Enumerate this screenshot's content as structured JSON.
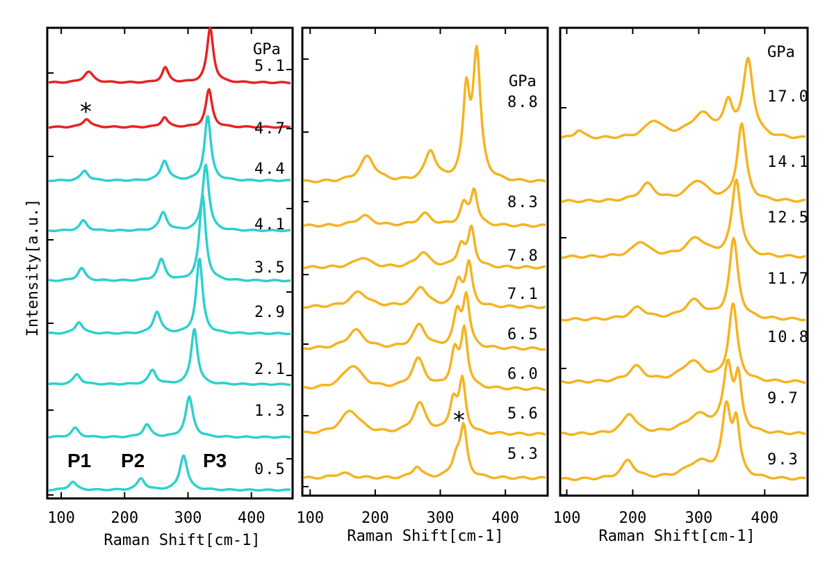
{
  "chart_data": [
    {
      "type": "line",
      "xlabel": "Raman Shift[cm-1]",
      "ylabel": "Intensity[a.u.]",
      "xlim": [
        78,
        465
      ],
      "x_ticks": [
        "100",
        "200",
        "300",
        "400"
      ],
      "unit_label": "GPa",
      "peak_labels": [
        "P1",
        "P2",
        "P3"
      ],
      "asterisk": "*",
      "colors": {
        "low_pressure": "#2ecfcf",
        "high_pressure": "#e82222"
      },
      "series": [
        {
          "name": "0.5",
          "color": "#2ecfcf",
          "peaks": [
            [
              118,
              10,
              7
            ],
            [
              226,
              14,
              7
            ],
            [
              293,
              42,
              7
            ]
          ]
        },
        {
          "name": "1.3",
          "color": "#2ecfcf",
          "peaks": [
            [
              122,
              11,
              7
            ],
            [
              235,
              15,
              7
            ],
            [
              302,
              48,
              7
            ]
          ]
        },
        {
          "name": "2.1",
          "color": "#2ecfcf",
          "peaks": [
            [
              125,
              12,
              7
            ],
            [
              244,
              17,
              7
            ],
            [
              310,
              67,
              6
            ]
          ]
        },
        {
          "name": "2.9",
          "color": "#2ecfcf",
          "peaks": [
            [
              128,
              14,
              7
            ],
            [
              251,
              26,
              7
            ],
            [
              318,
              90,
              6
            ]
          ]
        },
        {
          "name": "3.5",
          "color": "#2ecfcf",
          "peaks": [
            [
              132,
              15,
              7
            ],
            [
              258,
              25,
              7
            ],
            [
              323,
              102,
              6
            ]
          ]
        },
        {
          "name": "4.1",
          "color": "#2ecfcf",
          "peaks": [
            [
              135,
              12,
              7
            ],
            [
              261,
              22,
              7
            ],
            [
              328,
              80,
              6
            ]
          ]
        },
        {
          "name": "4.4",
          "color": "#2ecfcf",
          "peaks": [
            [
              137,
              12,
              7
            ],
            [
              263,
              24,
              7
            ],
            [
              331,
              78,
              6
            ]
          ]
        },
        {
          "name": "4.7",
          "color": "#e82222",
          "peaks": [
            [
              140,
              10,
              7
            ],
            [
              263,
              12,
              6
            ],
            [
              333,
              45,
              6
            ]
          ]
        },
        {
          "name": "5.1",
          "color": "#e82222",
          "peaks": [
            [
              143,
              13,
              9
            ],
            [
              264,
              18,
              6
            ],
            [
              335,
              66,
              6
            ]
          ]
        }
      ]
    },
    {
      "type": "line",
      "xlabel": "Raman Shift[cm-1]",
      "xlim": [
        88,
        465
      ],
      "x_ticks": [
        "100",
        "200",
        "300",
        "400"
      ],
      "unit_label": "GPa",
      "asterisk": "*",
      "colors": {
        "trace": "#f5b321"
      },
      "series": [
        {
          "name": "5.3",
          "color": "#f5b321",
          "peaks": [
            [
              150,
              6,
              15
            ],
            [
              264,
              14,
              8
            ],
            [
              325,
              25,
              8
            ],
            [
              336,
              56,
              6
            ]
          ]
        },
        {
          "name": "5.6",
          "color": "#f5b321",
          "peaks": [
            [
              162,
              28,
              18
            ],
            [
              268,
              36,
              12
            ],
            [
              320,
              38,
              7
            ],
            [
              334,
              60,
              6
            ]
          ]
        },
        {
          "name": "6.0",
          "color": "#f5b321",
          "peaks": [
            [
              165,
              28,
              18
            ],
            [
              266,
              35,
              12
            ],
            [
              322,
              42,
              7
            ],
            [
              337,
              68,
              6
            ]
          ]
        },
        {
          "name": "6.5",
          "color": "#f5b321",
          "peaks": [
            [
              170,
              22,
              16
            ],
            [
              268,
              28,
              12
            ],
            [
              326,
              40,
              7
            ],
            [
              340,
              60,
              6
            ]
          ]
        },
        {
          "name": "7.1",
          "color": "#f5b321",
          "peaks": [
            [
              175,
              18,
              16
            ],
            [
              270,
              24,
              12
            ],
            [
              328,
              30,
              7
            ],
            [
              344,
              50,
              6
            ]
          ]
        },
        {
          "name": "7.8",
          "color": "#f5b321",
          "peaks": [
            [
              180,
              12,
              14
            ],
            [
              273,
              18,
              12
            ],
            [
              332,
              26,
              7
            ],
            [
              348,
              45,
              6
            ]
          ]
        },
        {
          "name": "8.3",
          "color": "#f5b321",
          "peaks": [
            [
              183,
              12,
              14
            ],
            [
              276,
              14,
              12
            ],
            [
              336,
              24,
              7
            ],
            [
              352,
              42,
              6
            ]
          ]
        },
        {
          "name": "8.8",
          "color": "#f5b321",
          "peaks": [
            [
              188,
              30,
              14
            ],
            [
              285,
              36,
              10
            ],
            [
              340,
              100,
              6
            ],
            [
              356,
              150,
              7
            ]
          ]
        }
      ]
    },
    {
      "type": "line",
      "xlabel": "Raman Shift[cm-1]",
      "xlim": [
        90,
        465
      ],
      "x_ticks": [
        "100",
        "200",
        "300",
        "400"
      ],
      "unit_label": "GPa",
      "colors": {
        "trace": "#f5b321"
      },
      "series": [
        {
          "name": "9.3",
          "color": "#f5b321",
          "peaks": [
            [
              193,
              22,
              12
            ],
            [
              300,
              20,
              25
            ],
            [
              342,
              80,
              8
            ],
            [
              357,
              60,
              6
            ]
          ]
        },
        {
          "name": "9.7",
          "color": "#f5b321",
          "peaks": [
            [
              195,
              24,
              12
            ],
            [
              300,
              22,
              25
            ],
            [
              344,
              78,
              8
            ],
            [
              360,
              60,
              6
            ]
          ]
        },
        {
          "name": "10.8",
          "color": "#f5b321",
          "peaks": [
            [
              205,
              18,
              14
            ],
            [
              290,
              24,
              20
            ],
            [
              352,
              92,
              8
            ]
          ]
        },
        {
          "name": "11.7",
          "color": "#f5b321",
          "peaks": [
            [
              208,
              14,
              14
            ],
            [
              293,
              22,
              18
            ],
            [
              353,
              95,
              8
            ]
          ]
        },
        {
          "name": "12.5",
          "color": "#f5b321",
          "peaks": [
            [
              212,
              18,
              14
            ],
            [
              296,
              22,
              18
            ],
            [
              357,
              92,
              8
            ]
          ]
        },
        {
          "name": "14.1",
          "color": "#f5b321",
          "peaks": [
            [
              222,
              20,
              14
            ],
            [
              298,
              24,
              18
            ],
            [
              365,
              92,
              8
            ]
          ]
        },
        {
          "name": "17.0",
          "color": "#f5b321",
          "peaks": [
            [
              118,
              10,
              8
            ],
            [
              232,
              20,
              16
            ],
            [
              305,
              28,
              22
            ],
            [
              345,
              36,
              8
            ],
            [
              375,
              92,
              9
            ]
          ]
        }
      ]
    }
  ]
}
